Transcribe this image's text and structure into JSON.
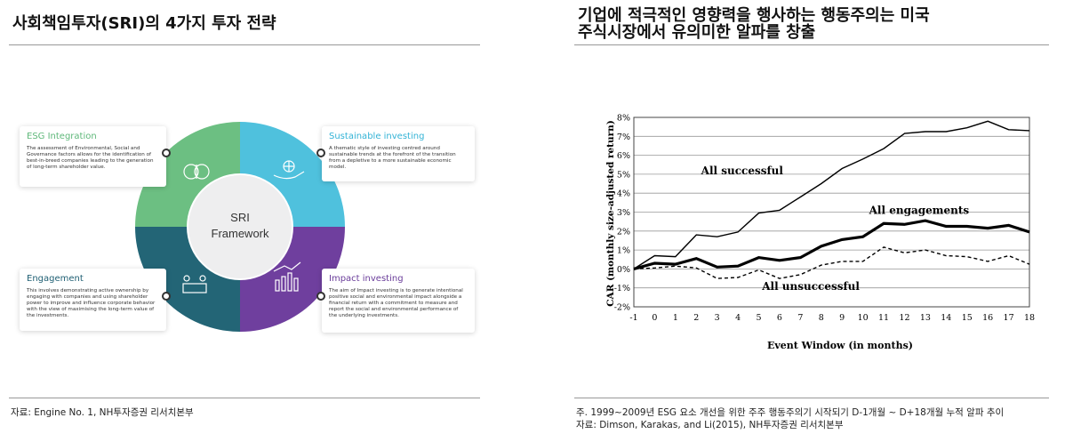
{
  "left": {
    "title": "사회책임투자(SRI)의 4가지 투자 전략",
    "center_label_1": "SRI",
    "center_label_2": "Framework",
    "cards": [
      {
        "title": "ESG Integration",
        "desc": "The assessment of Environmental, Social and Governance factors allows for the identification of best-in-breed companies leading to the generation of long-term shareholder value.",
        "color": "#5fb87a"
      },
      {
        "title": "Sustainable investing",
        "desc": "A thematic style of investing centred around sustainable trends at the forefront of the transition from a depletive to a more sustainable economic model.",
        "color": "#33b3d6"
      },
      {
        "title": "Engagement",
        "desc": "This involves demonstrating active ownership by engaging with companies and using shareholder power to improve and influence corporate behavior with the view of maximising the long-term value of the investments.",
        "color": "#1f5f73"
      },
      {
        "title": "Impact investing",
        "desc": "The aim of Impact investing is to generate intentional positive social and environmental impact alongside a financial return with a commitment to measure and report the social and environmental performance of the underlying investments.",
        "color": "#6a3d9a"
      }
    ],
    "ring_colors": {
      "top_left": "#6cbf82",
      "top_right": "#4fc1dd",
      "bottom_left": "#236576",
      "bottom_right": "#6f3f9e"
    },
    "source": "자료: Engine No. 1, NH투자증권 리서치본부"
  },
  "right": {
    "title_line1": "기업에 적극적인 영향력을 행사하는 행동주의는 미국",
    "title_line2": "주식시장에서 유의미한 알파를 창출",
    "note": "주. 1999~2009년 ESG 요소 개선을 위한 주주 행동주의기 시작되기 D-1개월 ~ D+18개월 누적 알파 추이",
    "source": "자료: Dimson, Karakas, and Li(2015), NH투자증권 리서치본부"
  },
  "chart_data": {
    "type": "line",
    "title": "",
    "xlabel": "Event Window (in months)",
    "ylabel": "CAR (monthly size-adjusted return)",
    "x": [
      -1,
      0,
      1,
      2,
      3,
      4,
      5,
      6,
      7,
      8,
      9,
      10,
      11,
      12,
      13,
      14,
      15,
      16,
      17,
      18
    ],
    "xlim": [
      -1,
      18
    ],
    "ylim": [
      -2,
      8
    ],
    "yticks": [
      -2,
      -1,
      0,
      1,
      2,
      3,
      4,
      5,
      6,
      7,
      8
    ],
    "ytick_suffix": "%",
    "grid": true,
    "series": [
      {
        "name": "All successful",
        "style": "thin",
        "values": [
          0.0,
          0.7,
          0.65,
          1.8,
          1.7,
          1.95,
          2.95,
          3.1,
          3.8,
          4.5,
          5.3,
          5.8,
          6.35,
          7.15,
          7.25,
          7.25,
          7.45,
          7.8,
          7.35,
          7.3
        ]
      },
      {
        "name": "All engagements",
        "style": "thick",
        "values": [
          0.0,
          0.3,
          0.25,
          0.55,
          0.1,
          0.15,
          0.6,
          0.45,
          0.6,
          1.2,
          1.55,
          1.7,
          2.4,
          2.35,
          2.55,
          2.25,
          2.25,
          2.15,
          2.3,
          1.95
        ]
      },
      {
        "name": "All unsuccessful",
        "style": "dashed",
        "values": [
          0.0,
          0.05,
          0.15,
          0.05,
          -0.5,
          -0.45,
          -0.05,
          -0.5,
          -0.3,
          0.2,
          0.4,
          0.4,
          1.15,
          0.85,
          1.0,
          0.7,
          0.65,
          0.4,
          0.7,
          0.25
        ]
      }
    ]
  }
}
